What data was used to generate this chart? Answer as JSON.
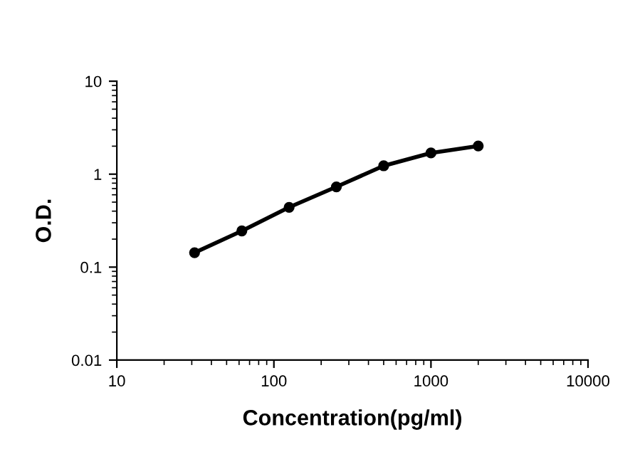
{
  "chart_data": {
    "type": "line",
    "xlabel": "Concentration(pg/ml)",
    "ylabel": "O.D.",
    "x": [
      31.25,
      62.5,
      125,
      250,
      500,
      1000,
      2000
    ],
    "series": [
      {
        "color": "#000000",
        "values": [
          0.143,
          0.245,
          0.44,
          0.73,
          1.23,
          1.69,
          2.01
        ]
      }
    ],
    "log": "xy",
    "xlim": [
      10,
      10000
    ],
    "ylim": [
      0.01,
      10
    ],
    "xticks": [
      10,
      100,
      1000,
      10000
    ],
    "yticks": [
      0.01,
      0.1,
      1,
      10
    ],
    "marker": "circle",
    "line_style": "solid",
    "grid": false,
    "legend": false
  }
}
